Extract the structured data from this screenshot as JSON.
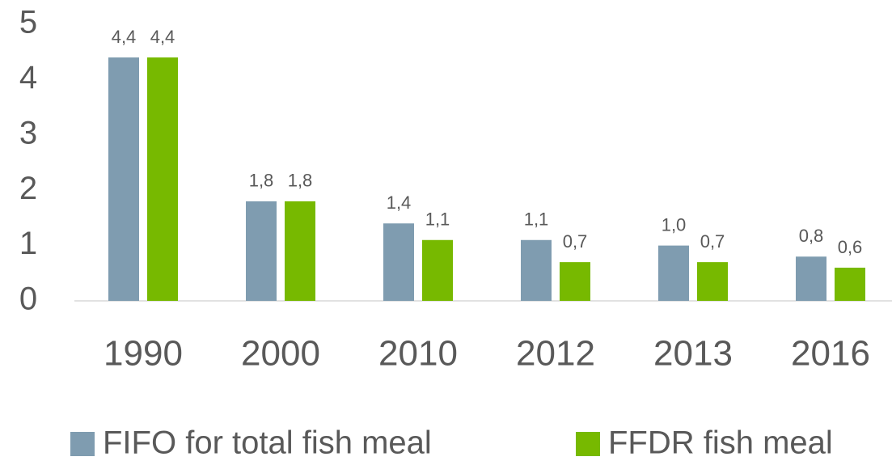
{
  "chart_data": {
    "type": "bar",
    "categories": [
      "1990",
      "2000",
      "2010",
      "2012",
      "2013",
      "2016"
    ],
    "series": [
      {
        "name": "FIFO for total fish meal",
        "color": "#7f9cb0",
        "values": [
          4.4,
          1.8,
          1.4,
          1.1,
          1.0,
          0.8
        ],
        "value_labels": [
          "4,4",
          "1,8",
          "1,4",
          "1,1",
          "1,0",
          "0,8"
        ]
      },
      {
        "name": "FFDR fish meal",
        "color": "#77b900",
        "values": [
          4.4,
          1.8,
          1.1,
          0.7,
          0.7,
          0.6
        ],
        "value_labels": [
          "4,4",
          "1,8",
          "1,1",
          "0,7",
          "0,7",
          "0,6"
        ]
      }
    ],
    "ylim": [
      0,
      5
    ],
    "yticks": [
      0,
      1,
      2,
      3,
      4,
      5
    ],
    "grid": false,
    "legend": "bottom"
  }
}
